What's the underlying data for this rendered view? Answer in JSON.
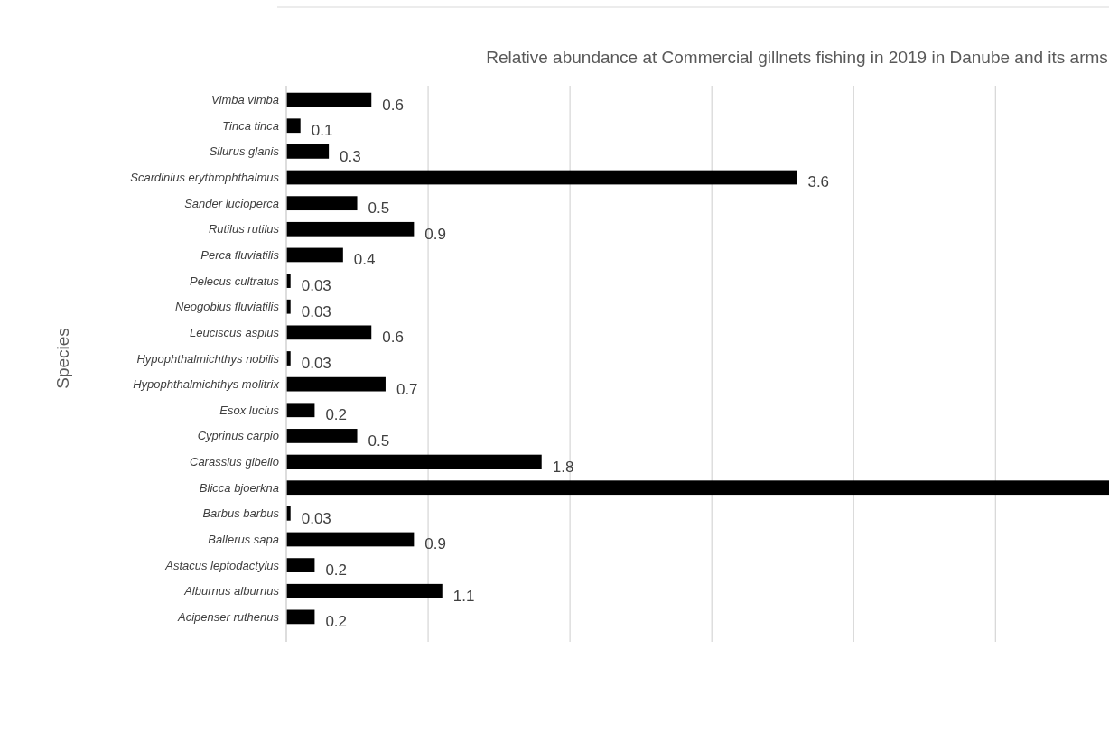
{
  "chart_data": {
    "type": "bar",
    "orientation": "horizontal",
    "title": "Relative abundance at Commercial gillnets fishing in 2019 in Danube and its arms",
    "ylabel": "Species",
    "categories": [
      "Vimba vimba",
      "Tinca tinca",
      "Silurus glanis",
      "Scardinius erythrophthalmus",
      "Sander lucioperca",
      "Rutilus rutilus",
      "Perca fluviatilis",
      "Pelecus cultratus",
      "Neogobius fluviatilis",
      "Leuciscus aspius",
      "Hypophthalmichthys nobilis",
      "Hypophthalmichthys molitrix",
      "Esox lucius",
      "Cyprinus carpio",
      "Carassius gibelio",
      "Blicca bjoerkna",
      "Barbus barbus",
      "Ballerus sapa",
      "Astacus leptodactylus",
      "Alburnus alburnus",
      "Acipenser ruthenus"
    ],
    "values": [
      0.6,
      0.1,
      0.3,
      3.6,
      0.5,
      0.9,
      0.4,
      0.03,
      0.03,
      0.6,
      0.03,
      0.7,
      0.2,
      0.5,
      1.8,
      5.8,
      0.03,
      0.9,
      0.2,
      1.1,
      0.2
    ],
    "value_labels": [
      "0.6",
      "0.1",
      "0.3",
      "3.6",
      "0.5",
      "0.9",
      "0.4",
      "0.03",
      "0.03",
      "0.6",
      "0.03",
      "0.7",
      "0.2",
      "0.5",
      "1.8",
      null,
      "0.03",
      "0.9",
      "0.2",
      "1.1",
      "0.2"
    ],
    "color": "#000000",
    "xlim": [
      0,
      5.8
    ],
    "xticks": [
      {
        "value": 0,
        "label": null
      },
      {
        "value": 1,
        "label": null
      },
      {
        "value": 2,
        "label": null
      },
      {
        "value": 3,
        "label": null
      },
      {
        "value": 4,
        "label": null
      },
      {
        "value": 5,
        "label": null
      }
    ],
    "grid": "x",
    "tick_labels": "y"
  }
}
